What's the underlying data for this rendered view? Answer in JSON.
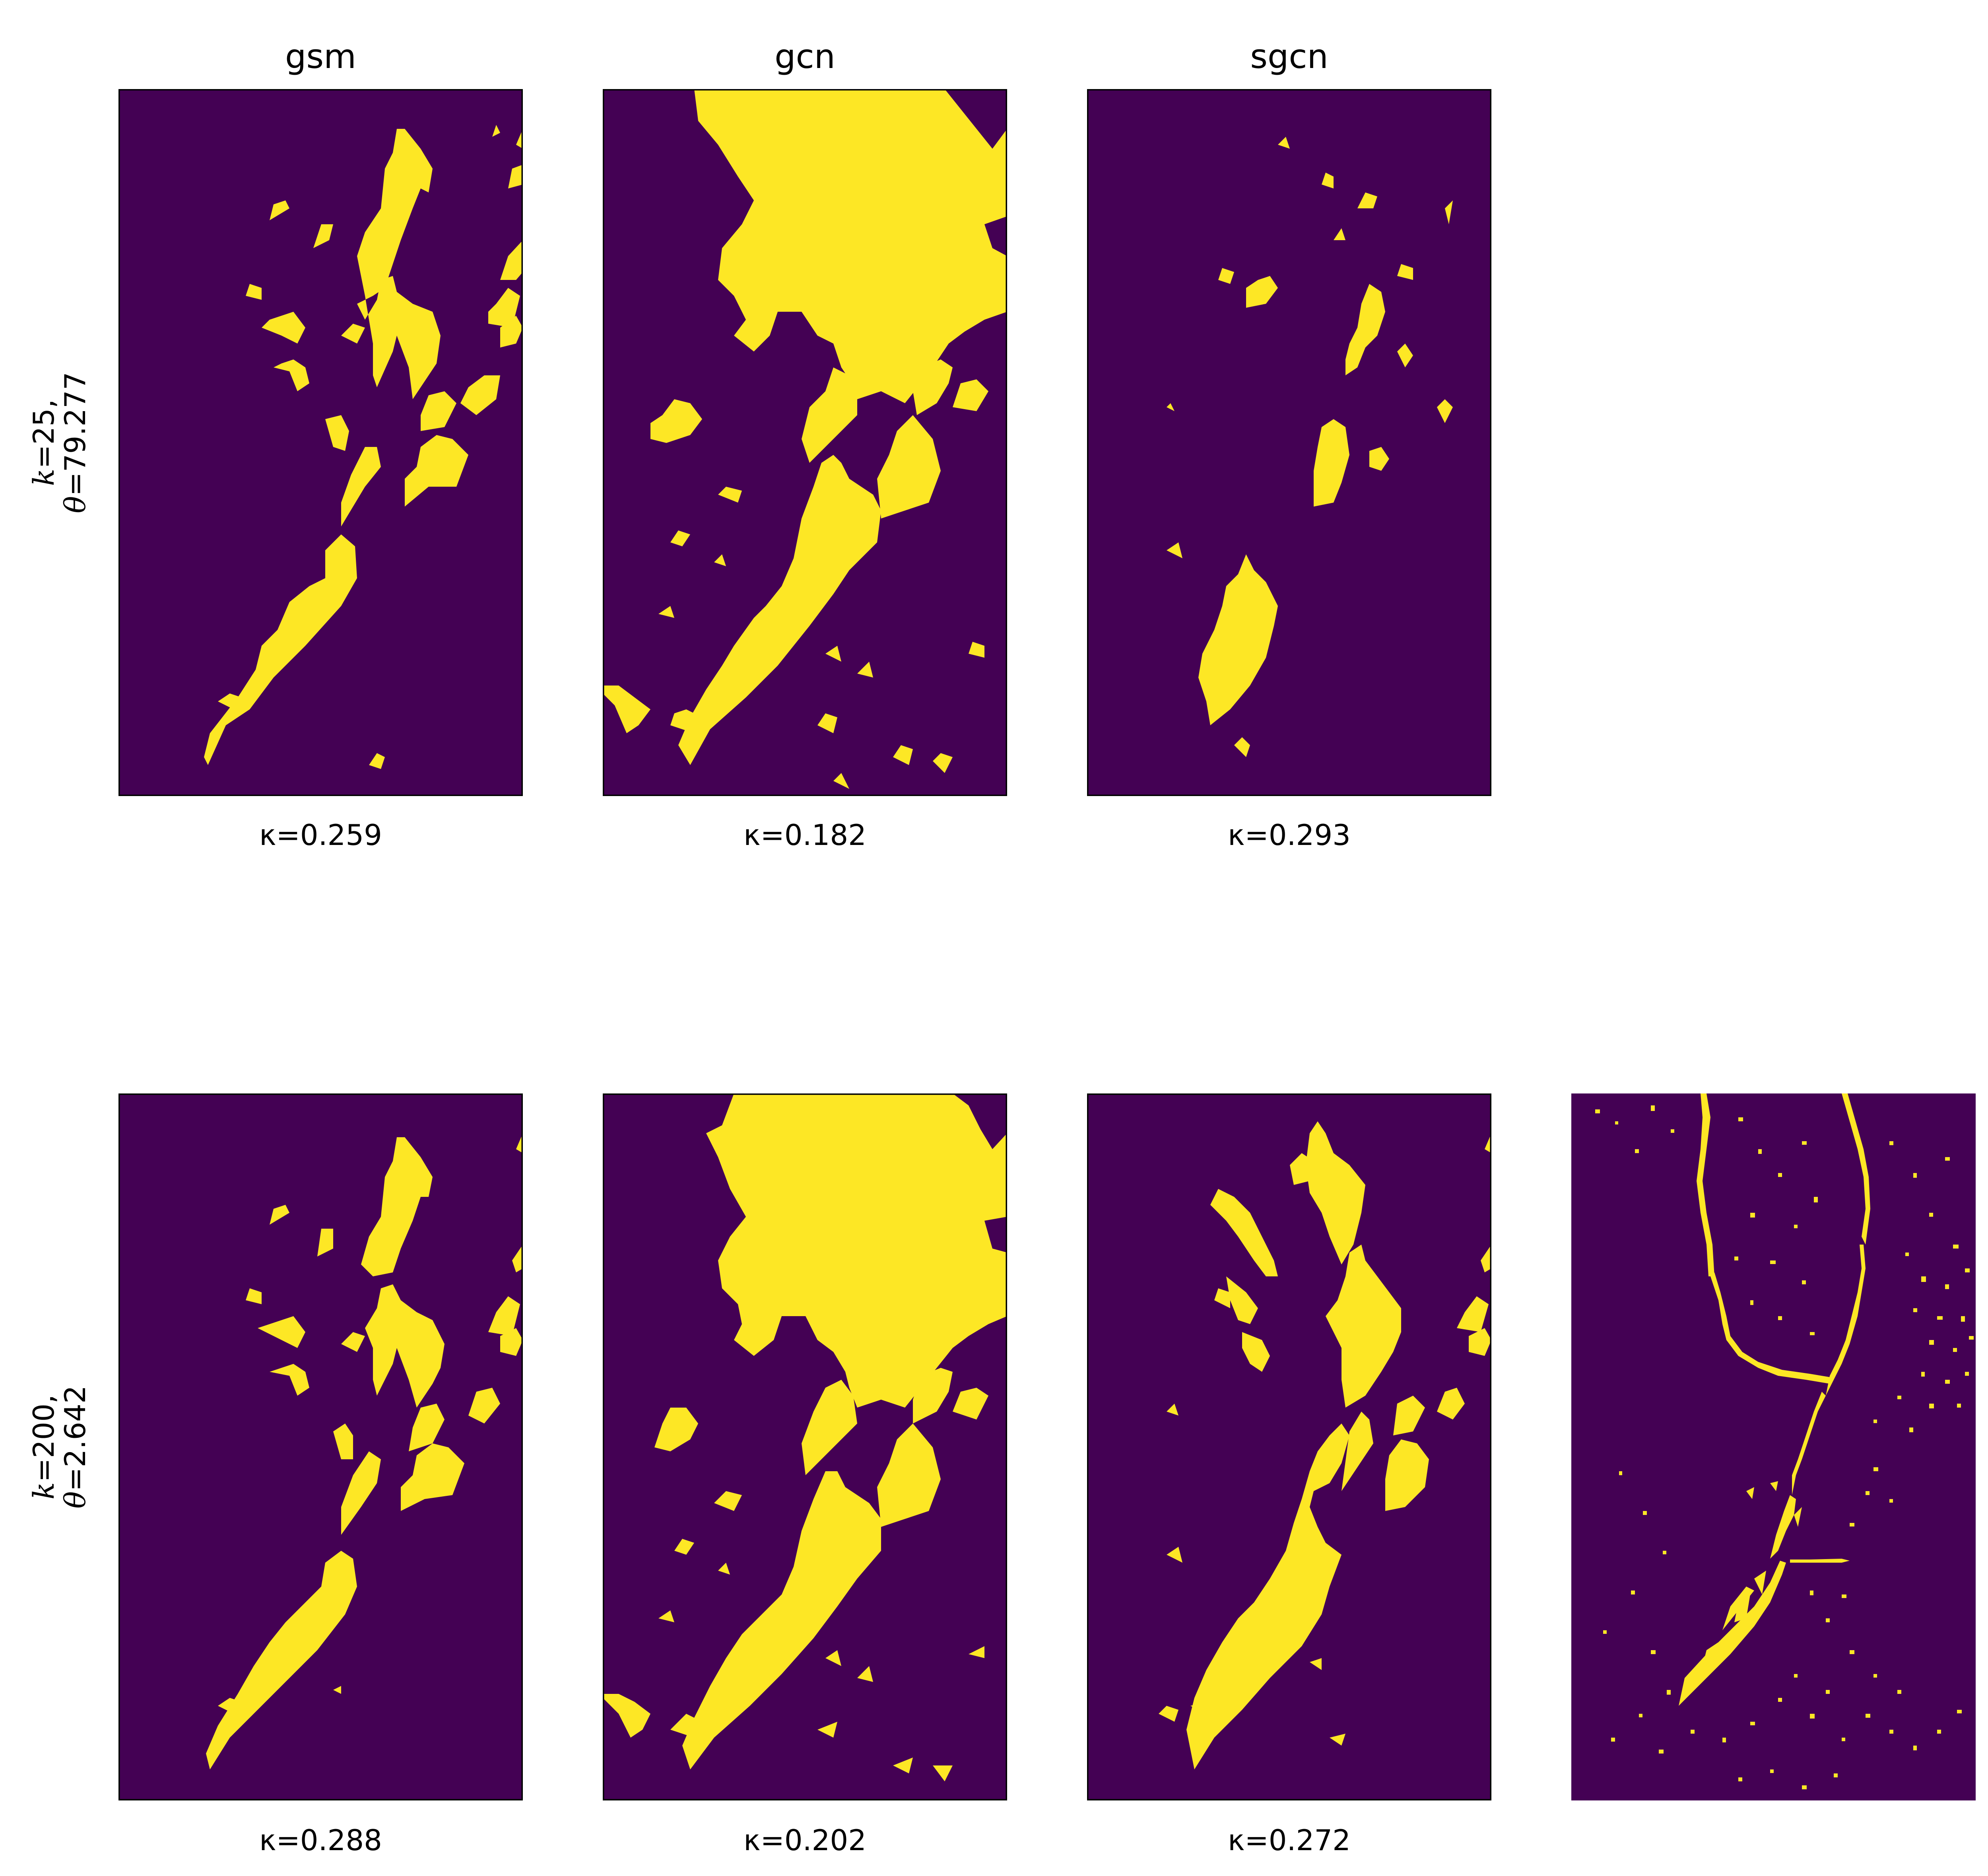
{
  "columns": [
    "gsm",
    "gcn",
    "sgcn"
  ],
  "rows": [
    {
      "k_symbol": "k",
      "k_value": "=25,",
      "theta_symbol": "θ",
      "theta_value": "=79.277",
      "kappas": [
        "κ=0.259",
        "κ=0.182",
        "κ=0.293"
      ]
    },
    {
      "k_symbol": "k",
      "k_value": "=200,",
      "theta_symbol": "θ",
      "theta_value": "=2.642",
      "kappas": [
        "κ=0.288",
        "κ=0.202",
        "κ=0.272"
      ]
    }
  ],
  "colors": {
    "background": "#440154",
    "foreground": "#fde725",
    "frame": "#000000"
  },
  "chart_data": {
    "type": "heatmap",
    "layout": "2 rows x 4 columns grid of binary raster maps",
    "column_titles": [
      "gsm",
      "gcn",
      "sgcn",
      ""
    ],
    "row_titles": [
      "k=25, θ=79.277",
      "k=200, θ=2.642"
    ],
    "kappa_scores": [
      [
        0.259,
        0.182,
        0.293
      ],
      [
        0.288,
        0.202,
        0.272
      ]
    ],
    "extra_panel": "ground-truth binary map (row 2, column 4, no frame, no label)"
  }
}
